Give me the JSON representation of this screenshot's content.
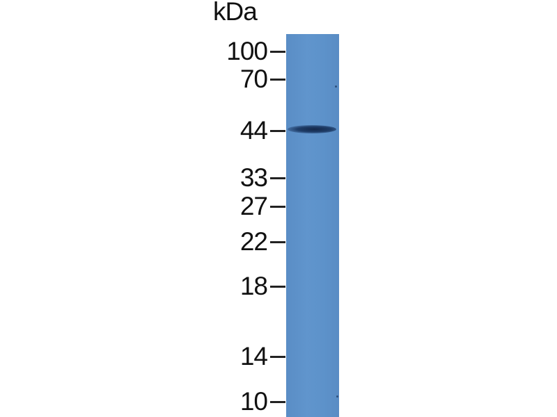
{
  "unit_label": "kDa",
  "markers": [
    {
      "label": "100",
      "kda": 100
    },
    {
      "label": "70",
      "kda": 70
    },
    {
      "label": "44",
      "kda": 44
    },
    {
      "label": "33",
      "kda": 33
    },
    {
      "label": "27",
      "kda": 27
    },
    {
      "label": "22",
      "kda": 22
    },
    {
      "label": "18",
      "kda": 18
    },
    {
      "label": "14",
      "kda": 14
    },
    {
      "label": "10",
      "kda": 10
    }
  ],
  "lane": {
    "color": "#5d92ca",
    "bands": [
      {
        "kda": 44,
        "color": "#1f3d68"
      }
    ]
  }
}
